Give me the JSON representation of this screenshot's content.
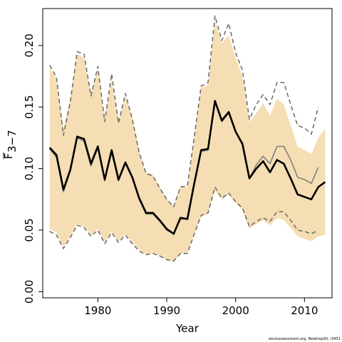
{
  "chart_data": {
    "type": "line",
    "xlabel": "Year",
    "ylabel": "F",
    "ylabel_sub": "3−7",
    "credit": "stockassessment.org, Newtrap30, r3451",
    "xlim": [
      1972,
      2014
    ],
    "ylim": [
      -0.005,
      0.23
    ],
    "x_ticks": [
      1980,
      1990,
      2000,
      2010
    ],
    "y_ticks": [
      0.0,
      0.05,
      0.1,
      0.15,
      0.2
    ],
    "y_tick_labels": [
      "0.00",
      "0.05",
      "0.10",
      "0.15",
      "0.20"
    ],
    "colors": {
      "band": "#f5deb3",
      "estimate": "#000000",
      "previous": "#808080",
      "dashed": "#696969"
    },
    "band": {
      "x": [
        1973,
        1974,
        1975,
        1976,
        1977,
        1978,
        1979,
        1980,
        1981,
        1982,
        1983,
        1984,
        1985,
        1986,
        1987,
        1988,
        1989,
        1990,
        1991,
        1992,
        1993,
        1994,
        1995,
        1996,
        1997,
        1998,
        1999,
        2000,
        2001,
        2002,
        2003,
        2004,
        2005,
        2006,
        2007,
        2008,
        2009,
        2010,
        2011,
        2012,
        2013
      ],
      "upper": [
        0.182,
        0.172,
        0.132,
        0.158,
        0.193,
        0.19,
        0.161,
        0.181,
        0.14,
        0.172,
        0.139,
        0.158,
        0.142,
        0.115,
        0.097,
        0.095,
        0.085,
        0.075,
        0.07,
        0.086,
        0.085,
        0.126,
        0.166,
        0.168,
        0.22,
        0.202,
        0.208,
        0.19,
        0.175,
        0.138,
        0.145,
        0.153,
        0.143,
        0.157,
        0.152,
        0.135,
        0.118,
        0.115,
        0.112,
        0.125,
        0.132
      ],
      "lower": [
        0.051,
        0.048,
        0.036,
        0.045,
        0.055,
        0.053,
        0.046,
        0.051,
        0.04,
        0.049,
        0.041,
        0.047,
        0.04,
        0.034,
        0.03,
        0.031,
        0.029,
        0.026,
        0.024,
        0.031,
        0.031,
        0.047,
        0.061,
        0.063,
        0.082,
        0.075,
        0.079,
        0.072,
        0.066,
        0.051,
        0.055,
        0.058,
        0.054,
        0.06,
        0.058,
        0.052,
        0.045,
        0.043,
        0.041,
        0.045,
        0.046
      ]
    },
    "series": [
      {
        "role": "estimate",
        "style": "solid",
        "x": [
          1973,
          1974,
          1975,
          1976,
          1977,
          1978,
          1979,
          1980,
          1981,
          1982,
          1983,
          1984,
          1985,
          1986,
          1987,
          1988,
          1989,
          1990,
          1991,
          1992,
          1993,
          1994,
          1995,
          1996,
          1997,
          1998,
          1999,
          2000,
          2001,
          2002,
          2003,
          2004,
          2005,
          2006,
          2007,
          2008,
          2009,
          2010,
          2011,
          2012,
          2013
        ],
        "values": [
          0.117,
          0.111,
          0.083,
          0.099,
          0.126,
          0.124,
          0.104,
          0.118,
          0.091,
          0.115,
          0.091,
          0.105,
          0.093,
          0.076,
          0.064,
          0.064,
          0.058,
          0.051,
          0.047,
          0.06,
          0.059,
          0.088,
          0.115,
          0.116,
          0.155,
          0.139,
          0.146,
          0.13,
          0.12,
          0.092,
          0.1,
          0.106,
          0.097,
          0.107,
          0.104,
          0.092,
          0.079,
          0.077,
          0.075,
          0.085,
          0.089
        ]
      },
      {
        "role": "previous",
        "style": "solid",
        "x": [
          1973,
          1974,
          1975,
          1976,
          1977,
          1978,
          1979,
          1980,
          1981,
          1982,
          1983,
          1984,
          1985,
          1986,
          1987,
          1988,
          1989,
          1990,
          1991,
          1992,
          1993,
          1994,
          1995,
          1996,
          1997,
          1998,
          1999,
          2000,
          2001,
          2002,
          2003,
          2004,
          2005,
          2006,
          2007,
          2008,
          2009,
          2010,
          2011,
          2012
        ],
        "values": [
          0.116,
          0.109,
          0.081,
          0.098,
          0.125,
          0.122,
          0.102,
          0.117,
          0.09,
          0.113,
          0.09,
          0.104,
          0.092,
          0.075,
          0.063,
          0.063,
          0.057,
          0.05,
          0.047,
          0.059,
          0.059,
          0.087,
          0.114,
          0.115,
          0.154,
          0.138,
          0.145,
          0.13,
          0.119,
          0.092,
          0.103,
          0.11,
          0.104,
          0.118,
          0.118,
          0.107,
          0.093,
          0.091,
          0.088,
          0.101
        ]
      },
      {
        "role": "previous-upper",
        "style": "dashed",
        "x": [
          1973,
          1974,
          1975,
          1976,
          1977,
          1978,
          1979,
          1980,
          1981,
          1982,
          1983,
          1984,
          1985,
          1986,
          1987,
          1988,
          1989,
          1990,
          1991,
          1992,
          1993,
          1994,
          1995,
          1996,
          1997,
          1998,
          1999,
          2000,
          2001,
          2002,
          2003,
          2004,
          2005,
          2006,
          2007,
          2008,
          2009,
          2010,
          2011,
          2012
        ],
        "values": [
          0.184,
          0.174,
          0.127,
          0.154,
          0.195,
          0.193,
          0.159,
          0.183,
          0.138,
          0.177,
          0.137,
          0.161,
          0.14,
          0.113,
          0.096,
          0.094,
          0.084,
          0.075,
          0.069,
          0.085,
          0.086,
          0.126,
          0.167,
          0.17,
          0.224,
          0.204,
          0.218,
          0.194,
          0.18,
          0.14,
          0.152,
          0.16,
          0.152,
          0.17,
          0.17,
          0.152,
          0.135,
          0.133,
          0.128,
          0.15
        ]
      },
      {
        "role": "previous-lower",
        "style": "dashed",
        "x": [
          1973,
          1974,
          1975,
          1976,
          1977,
          1978,
          1979,
          1980,
          1981,
          1982,
          1983,
          1984,
          1985,
          1986,
          1987,
          1988,
          1989,
          1990,
          1991,
          1992,
          1993,
          1994,
          1995,
          1996,
          1997,
          1998,
          1999,
          2000,
          2001,
          2002,
          2003,
          2004,
          2005,
          2006,
          2007,
          2008,
          2009,
          2010,
          2011,
          2012
        ],
        "values": [
          0.049,
          0.046,
          0.035,
          0.044,
          0.054,
          0.052,
          0.045,
          0.05,
          0.039,
          0.048,
          0.04,
          0.046,
          0.039,
          0.033,
          0.03,
          0.031,
          0.029,
          0.026,
          0.025,
          0.031,
          0.031,
          0.047,
          0.062,
          0.064,
          0.085,
          0.076,
          0.08,
          0.073,
          0.068,
          0.053,
          0.057,
          0.06,
          0.057,
          0.065,
          0.065,
          0.058,
          0.05,
          0.049,
          0.047,
          0.05
        ]
      }
    ]
  }
}
